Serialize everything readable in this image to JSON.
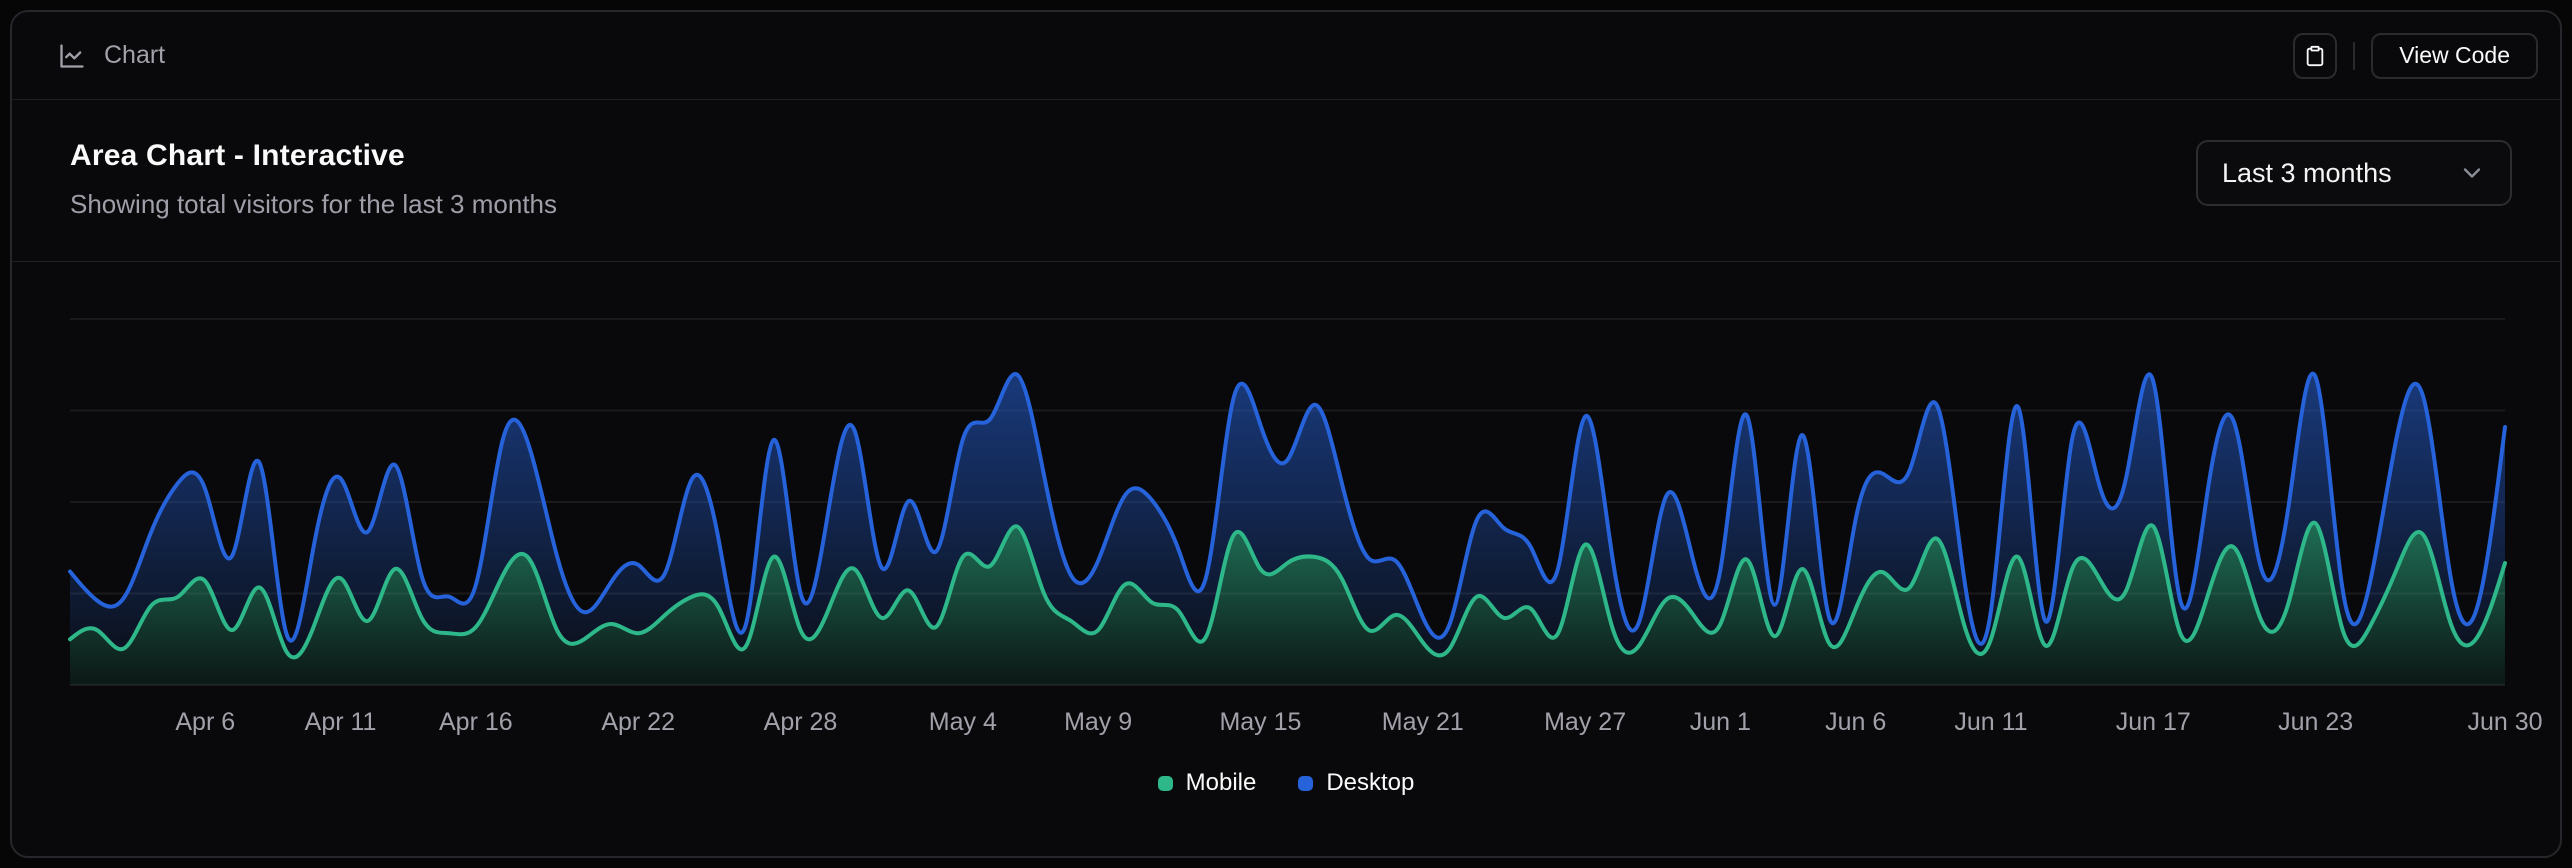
{
  "toolbar": {
    "title": "Chart",
    "copy_button": "clipboard-icon",
    "view_code_label": "View Code"
  },
  "card": {
    "title": "Area Chart - Interactive",
    "description": "Showing total visitors for the last 3 months",
    "range_selector": {
      "value": "Last 3 months"
    }
  },
  "colors": {
    "background": "#09090b",
    "border": "#26262b",
    "muted_text": "#a1a1aa",
    "text": "#fafafa",
    "grid": "rgba(255,255,255,0.07)",
    "mobile": "#2eb88a",
    "desktop": "#2662d9"
  },
  "chart_data": {
    "type": "area",
    "stacked": true,
    "curve": "natural",
    "grid": true,
    "legend_position": "bottom",
    "y_axis_labels_shown": false,
    "ylim": [
      0,
      1200
    ],
    "y_ticks": [
      0,
      300,
      600,
      900,
      1200
    ],
    "x": [
      "Apr 1",
      "Apr 2",
      "Apr 3",
      "Apr 4",
      "Apr 5",
      "Apr 6",
      "Apr 7",
      "Apr 8",
      "Apr 9",
      "Apr 10",
      "Apr 11",
      "Apr 12",
      "Apr 13",
      "Apr 14",
      "Apr 15",
      "Apr 16",
      "Apr 17",
      "Apr 18",
      "Apr 19",
      "Apr 20",
      "Apr 21",
      "Apr 22",
      "Apr 23",
      "Apr 24",
      "Apr 25",
      "Apr 26",
      "Apr 27",
      "Apr 28",
      "Apr 29",
      "Apr 30",
      "May 1",
      "May 2",
      "May 3",
      "May 4",
      "May 5",
      "May 6",
      "May 7",
      "May 8",
      "May 9",
      "May 10",
      "May 11",
      "May 12",
      "May 13",
      "May 14",
      "May 15",
      "May 16",
      "May 17",
      "May 18",
      "May 19",
      "May 20",
      "May 21",
      "May 22",
      "May 23",
      "May 24",
      "May 25",
      "May 26",
      "May 27",
      "May 28",
      "May 29",
      "May 30",
      "May 31",
      "Jun 1",
      "Jun 2",
      "Jun 3",
      "Jun 4",
      "Jun 5",
      "Jun 6",
      "Jun 7",
      "Jun 8",
      "Jun 9",
      "Jun 10",
      "Jun 11",
      "Jun 12",
      "Jun 13",
      "Jun 14",
      "Jun 15",
      "Jun 16",
      "Jun 17",
      "Jun 18",
      "Jun 19",
      "Jun 20",
      "Jun 21",
      "Jun 22",
      "Jun 23",
      "Jun 24",
      "Jun 25",
      "Jun 26",
      "Jun 27",
      "Jun 28",
      "Jun 29",
      "Jun 30"
    ],
    "x_tick_labels": [
      "Apr 6",
      "Apr 11",
      "Apr 16",
      "Apr 22",
      "Apr 28",
      "May 4",
      "May 9",
      "May 15",
      "May 21",
      "May 27",
      "Jun 1",
      "Jun 6",
      "Jun 11",
      "Jun 17",
      "Jun 23",
      "Jun 30"
    ],
    "series": [
      {
        "name": "Mobile",
        "color": "#2eb88a",
        "values": [
          150,
          180,
          120,
          260,
          290,
          340,
          180,
          320,
          110,
          190,
          350,
          210,
          380,
          220,
          170,
          190,
          360,
          410,
          180,
          150,
          200,
          170,
          230,
          290,
          250,
          130,
          420,
          180,
          240,
          380,
          220,
          310,
          190,
          420,
          390,
          520,
          300,
          210,
          180,
          330,
          270,
          240,
          160,
          490,
          380,
          400,
          420,
          350,
          180,
          230,
          140,
          120,
          290,
          220,
          250,
          170,
          460,
          190,
          130,
          280,
          230,
          200,
          410,
          160,
          380,
          140,
          250,
          370,
          320,
          480,
          200,
          150,
          420,
          130,
          380,
          350,
          310,
          520,
          170,
          290,
          450,
          210,
          270,
          530,
          180,
          190,
          380,
          490,
          200,
          160,
          400
        ]
      },
      {
        "name": "Desktop",
        "color": "#2662d9",
        "values": [
          222,
          97,
          167,
          242,
          373,
          301,
          245,
          409,
          59,
          261,
          327,
          292,
          342,
          137,
          120,
          138,
          446,
          364,
          243,
          89,
          137,
          224,
          138,
          387,
          215,
          75,
          383,
          122,
          315,
          454,
          165,
          293,
          247,
          385,
          481,
          498,
          388,
          149,
          227,
          293,
          335,
          197,
          197,
          448,
          473,
          338,
          499,
          315,
          235,
          177,
          82,
          81,
          252,
          294,
          201,
          213,
          420,
          233,
          78,
          340,
          178,
          178,
          470,
          103,
          439,
          88,
          294,
          323,
          385,
          438,
          155,
          92,
          492,
          81,
          426,
          307,
          371,
          475,
          107,
          341,
          408,
          169,
          317,
          480,
          132,
          141,
          434,
          448,
          149,
          103,
          446
        ]
      }
    ],
    "legend": [
      {
        "label": "Mobile",
        "color": "#2eb88a"
      },
      {
        "label": "Desktop",
        "color": "#2662d9"
      }
    ]
  }
}
